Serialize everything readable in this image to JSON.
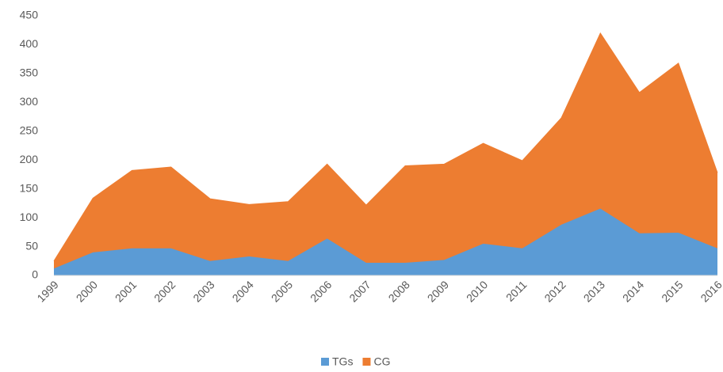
{
  "chart_data": {
    "type": "area",
    "stacked": true,
    "categories": [
      "1999",
      "2000",
      "2001",
      "2002",
      "2003",
      "2004",
      "2005",
      "2006",
      "2007",
      "2008",
      "2009",
      "2010",
      "2011",
      "2012",
      "2013",
      "2014",
      "2015",
      "2016"
    ],
    "series": [
      {
        "name": "TGs",
        "color": "#5b9bd5",
        "values": [
          12,
          40,
          47,
          47,
          25,
          33,
          25,
          64,
          22,
          22,
          27,
          55,
          47,
          88,
          116,
          73,
          74,
          47
        ]
      },
      {
        "name": "CG",
        "color": "#ed7d31",
        "values": [
          13,
          94,
          135,
          141,
          108,
          90,
          103,
          129,
          100,
          168,
          166,
          174,
          152,
          185,
          304,
          244,
          294,
          131
        ]
      }
    ],
    "ylim": [
      0,
      450
    ],
    "yticks": [
      0,
      50,
      100,
      150,
      200,
      250,
      300,
      350,
      400,
      450
    ],
    "grid": false,
    "legend": "bottom"
  }
}
